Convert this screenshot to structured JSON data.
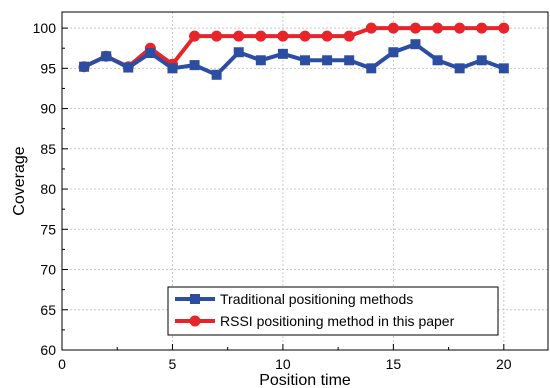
{
  "chart_data": {
    "type": "line",
    "title": "",
    "xlabel": "Position time",
    "ylabel": "Coverage",
    "xlim": [
      0,
      22
    ],
    "ylim": [
      60,
      102
    ],
    "xticks": [
      0,
      5,
      10,
      15,
      20
    ],
    "yticks": [
      60,
      65,
      70,
      75,
      80,
      85,
      90,
      95,
      100
    ],
    "grid": true,
    "legend_position": "bottom-right",
    "x": [
      1,
      2,
      3,
      4,
      5,
      6,
      7,
      8,
      9,
      10,
      11,
      12,
      13,
      14,
      15,
      16,
      17,
      18,
      19,
      20
    ],
    "series": [
      {
        "name": "Traditional positioning methods",
        "color": "#2b4ea2",
        "marker": "square",
        "values": [
          95.2,
          96.5,
          95.1,
          96.9,
          95.0,
          95.4,
          94.2,
          97.0,
          96.0,
          96.8,
          96.0,
          96.0,
          96.0,
          95.0,
          97.0,
          98.0,
          96.0,
          95.0,
          96.0,
          95.0
        ]
      },
      {
        "name": "RSSI positioning method in this paper",
        "color": "#e8242b",
        "marker": "circle",
        "values": [
          95.2,
          96.5,
          95.2,
          97.5,
          95.5,
          99.0,
          99.0,
          99.0,
          99.0,
          99.0,
          99.0,
          99.0,
          99.0,
          100.0,
          100.0,
          100.0,
          100.0,
          100.0,
          100.0,
          100.0
        ]
      }
    ]
  }
}
